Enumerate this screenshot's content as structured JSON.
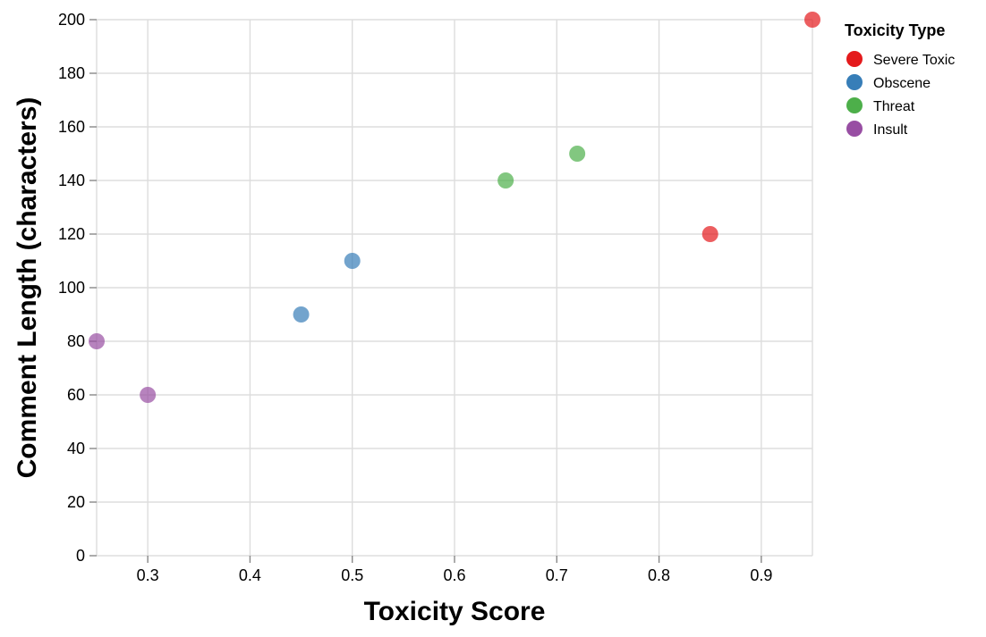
{
  "chart_data": {
    "type": "scatter",
    "xlabel": "Toxicity Score",
    "ylabel": "Comment Length (characters)",
    "xlim": [
      0.25,
      0.95
    ],
    "ylim": [
      0,
      200
    ],
    "x_ticks": [
      0.3,
      0.4,
      0.5,
      0.6,
      0.7,
      0.8,
      0.9
    ],
    "y_ticks": [
      0,
      20,
      40,
      60,
      80,
      100,
      120,
      140,
      160,
      180,
      200
    ],
    "grid": true,
    "legend_title": "Toxicity Type",
    "legend_position": "top-right",
    "series": [
      {
        "name": "Severe Toxic",
        "color": "#e41a1c",
        "points": [
          {
            "x": 0.95,
            "y": 200
          },
          {
            "x": 0.85,
            "y": 120
          }
        ]
      },
      {
        "name": "Obscene",
        "color": "#377eb8",
        "points": [
          {
            "x": 0.45,
            "y": 90
          },
          {
            "x": 0.5,
            "y": 110
          }
        ]
      },
      {
        "name": "Threat",
        "color": "#4daf4a",
        "points": [
          {
            "x": 0.72,
            "y": 150
          },
          {
            "x": 0.65,
            "y": 140
          }
        ]
      },
      {
        "name": "Insult",
        "color": "#984ea3",
        "points": [
          {
            "x": 0.3,
            "y": 60
          },
          {
            "x": 0.25,
            "y": 80
          }
        ]
      }
    ]
  }
}
